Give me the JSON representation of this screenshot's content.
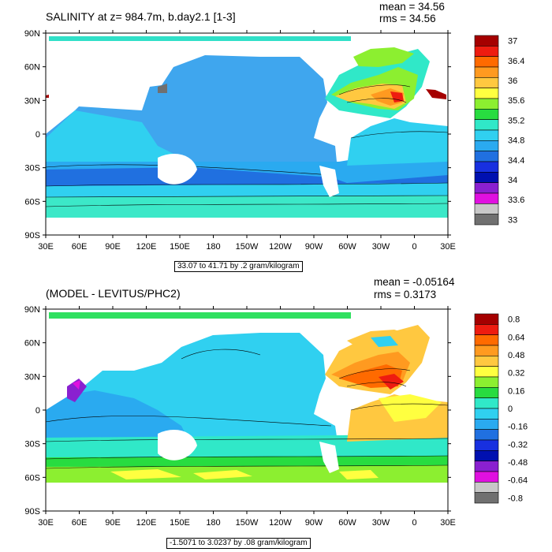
{
  "panels": [
    {
      "title": "SALINITY at z= 984.7m, b.day2.1 [1-3]",
      "mean_text": "mean = 34.56",
      "rms_text": "rms = 34.56",
      "range_text": "33.07 to 41.71 by .2 gram/kilogram",
      "colorbar_labels": [
        "37",
        "36.4",
        "36",
        "35.6",
        "35.2",
        "34.8",
        "34.4",
        "34",
        "33.6",
        "33"
      ],
      "colorbar_colors": [
        "#a50000",
        "#ee1c10",
        "#ff6a00",
        "#ff9a20",
        "#ffc840",
        "#ffff40",
        "#8cef30",
        "#28dc40",
        "#30e8c8",
        "#30d0f0",
        "#2aaaf0",
        "#2070e0",
        "#1830e0",
        "#0010b0",
        "#8a20d0",
        "#e010e0",
        "#c8c8c8",
        "#707070"
      ]
    },
    {
      "title": "(MODEL - LEVITUS/PHC2)",
      "mean_text": "mean = -0.05164",
      "rms_text": "rms = 0.3173",
      "range_text": "-1.5071 to 3.0237 by .08 gram/kilogram",
      "colorbar_labels": [
        "0.8",
        "0.64",
        "0.48",
        "0.32",
        "0.16",
        "0",
        "-0.16",
        "-0.32",
        "-0.48",
        "-0.64",
        "-0.8"
      ],
      "colorbar_colors": [
        "#a50000",
        "#ee1c10",
        "#ff6a00",
        "#ff9a20",
        "#ffc840",
        "#ffff40",
        "#8cef30",
        "#28dc40",
        "#30e8c8",
        "#30d0f0",
        "#2aaaf0",
        "#2070e0",
        "#1830e0",
        "#0010b0",
        "#8a20d0",
        "#e010e0",
        "#c8c8c8",
        "#707070"
      ]
    }
  ],
  "lat_labels": [
    "90N",
    "60N",
    "30N",
    "0",
    "30S",
    "60S",
    "90S"
  ],
  "lon_labels": [
    "30E",
    "60E",
    "90E",
    "120E",
    "150E",
    "180",
    "150W",
    "120W",
    "90W",
    "60W",
    "30W",
    "0",
    "30E"
  ],
  "colors": {
    "ocean_pacific_top": "#3fa6ee",
    "ocean_south_band": "#2078e0",
    "ocean_light": "#30dcee",
    "ocean_teal": "#3ce8c8",
    "atlantic_warm": "#ffc840",
    "atlantic_hot": "#ee1c10",
    "arctic": "#30e060",
    "land": "#ffffff"
  }
}
